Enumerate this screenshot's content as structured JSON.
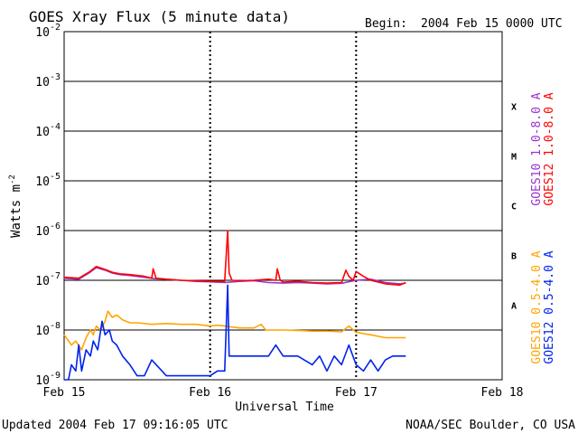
{
  "chart_data": {
    "type": "line",
    "title": "GOES Xray Flux (5 minute data)",
    "begin_label": "Begin:",
    "begin_value": "2004 Feb 15 0000 UTC",
    "xlabel": "Universal Time",
    "ylabel_base": "Watts m",
    "ylabel_exp": "-2",
    "x_domain_days": [
      0,
      3
    ],
    "x_ticks": [
      {
        "x": 0,
        "label": "Feb 15"
      },
      {
        "x": 1,
        "label": "Feb 16"
      },
      {
        "x": 2,
        "label": "Feb 17"
      },
      {
        "x": 3,
        "label": "Feb 18"
      }
    ],
    "y_scale": "log",
    "ylim": [
      1e-09,
      0.01
    ],
    "y_ticks": [
      {
        "value": 0.01,
        "base": "10",
        "exp": "-2"
      },
      {
        "value": 0.001,
        "base": "10",
        "exp": "-3"
      },
      {
        "value": 0.0001,
        "base": "10",
        "exp": "-4"
      },
      {
        "value": 1e-05,
        "base": "10",
        "exp": "-5"
      },
      {
        "value": 1e-06,
        "base": "10",
        "exp": "-6"
      },
      {
        "value": 1e-07,
        "base": "10",
        "exp": "-7"
      },
      {
        "value": 1e-08,
        "base": "10",
        "exp": "-8"
      },
      {
        "value": 1e-09,
        "base": "10",
        "exp": "-9"
      }
    ],
    "grid": "horizontal lines at each decade",
    "flare_classes": [
      {
        "label": "X",
        "band": [
          0.0001,
          0.001
        ]
      },
      {
        "label": "M",
        "band": [
          1e-05,
          0.0001
        ]
      },
      {
        "label": "C",
        "band": [
          1e-06,
          1e-05
        ]
      },
      {
        "label": "B",
        "band": [
          1e-07,
          1e-06
        ]
      },
      {
        "label": "A",
        "band": [
          1e-08,
          1e-07
        ]
      }
    ],
    "series": [
      {
        "name": "GOES10 1.0-8.0 A",
        "color": "#9933cc",
        "x": [
          0,
          0.1,
          0.17,
          0.22,
          0.28,
          0.33,
          0.38,
          0.45,
          0.55,
          0.62,
          0.7,
          0.8,
          0.9,
          1.0,
          1.1,
          1.2,
          1.3,
          1.4,
          1.5,
          1.6,
          1.7,
          1.8,
          1.9,
          2.0,
          2.1,
          2.2,
          2.3,
          2.34
        ],
        "y": [
          1.1e-07,
          1.05e-07,
          1.4e-07,
          1.8e-07,
          1.6e-07,
          1.4e-07,
          1.3e-07,
          1.25e-07,
          1.15e-07,
          1.08e-07,
          1.05e-07,
          1e-07,
          9.5e-08,
          9.3e-08,
          9e-08,
          9.5e-08,
          9.8e-08,
          9e-08,
          8.8e-08,
          9e-08,
          8.8e-08,
          8.5e-08,
          8.7e-08,
          1e-07,
          1.05e-07,
          9e-08,
          8.5e-08,
          8.8e-08
        ]
      },
      {
        "name": "GOES12 1.0-8.0 A",
        "color": "#ff0000",
        "x": [
          0,
          0.1,
          0.17,
          0.22,
          0.28,
          0.33,
          0.38,
          0.45,
          0.55,
          0.6,
          0.61,
          0.63,
          0.7,
          0.8,
          0.9,
          1.0,
          1.1,
          1.12,
          1.13,
          1.15,
          1.2,
          1.3,
          1.4,
          1.45,
          1.46,
          1.48,
          1.5,
          1.6,
          1.7,
          1.8,
          1.9,
          1.93,
          1.95,
          1.98,
          2.0,
          2.05,
          2.1,
          2.2,
          2.3,
          2.34
        ],
        "y": [
          1.15e-07,
          1.1e-07,
          1.45e-07,
          1.9e-07,
          1.65e-07,
          1.45e-07,
          1.35e-07,
          1.3e-07,
          1.2e-07,
          1.1e-07,
          1.7e-07,
          1.1e-07,
          1.05e-07,
          1e-07,
          9.8e-08,
          9.5e-08,
          9.5e-08,
          1e-06,
          1.4e-07,
          1e-07,
          9.8e-08,
          1e-07,
          1.05e-07,
          1e-07,
          1.7e-07,
          1e-07,
          9.2e-08,
          9.5e-08,
          9e-08,
          8.8e-08,
          9e-08,
          1.6e-07,
          1.2e-07,
          1e-07,
          1.5e-07,
          1.2e-07,
          1e-07,
          8.5e-08,
          8e-08,
          9e-08
        ]
      },
      {
        "name": "GOES10 0.5-4.0 A",
        "color": "#ffa500",
        "x": [
          0,
          0.05,
          0.08,
          0.12,
          0.15,
          0.18,
          0.2,
          0.22,
          0.25,
          0.28,
          0.3,
          0.33,
          0.36,
          0.4,
          0.45,
          0.5,
          0.6,
          0.7,
          0.8,
          0.9,
          1.0,
          1.05,
          1.1,
          1.2,
          1.3,
          1.35,
          1.38,
          1.4,
          1.5,
          1.6,
          1.7,
          1.8,
          1.9,
          1.95,
          2.0,
          2.05,
          2.1,
          2.2,
          2.3,
          2.34
        ],
        "y": [
          8e-09,
          5e-09,
          6e-09,
          4e-09,
          7e-09,
          1e-08,
          8e-09,
          1.2e-08,
          1e-08,
          1.5e-08,
          2.4e-08,
          1.8e-08,
          2e-08,
          1.6e-08,
          1.4e-08,
          1.4e-08,
          1.3e-08,
          1.35e-08,
          1.3e-08,
          1.3e-08,
          1.2e-08,
          1.25e-08,
          1.2e-08,
          1.1e-08,
          1.1e-08,
          1.3e-08,
          1e-08,
          1e-08,
          1e-08,
          9.8e-09,
          9.5e-09,
          9.5e-09,
          9.2e-09,
          1.2e-08,
          9e-09,
          8.5e-09,
          8e-09,
          7e-09,
          7e-09,
          7e-09
        ]
      },
      {
        "name": "GOES12 0.5-4.0 A",
        "color": "#0022ee",
        "x": [
          0,
          0.03,
          0.05,
          0.08,
          0.1,
          0.12,
          0.15,
          0.18,
          0.2,
          0.23,
          0.26,
          0.28,
          0.31,
          0.33,
          0.36,
          0.4,
          0.45,
          0.5,
          0.55,
          0.6,
          0.7,
          0.8,
          0.9,
          1.0,
          1.05,
          1.1,
          1.12,
          1.13,
          1.15,
          1.2,
          1.3,
          1.4,
          1.45,
          1.5,
          1.6,
          1.7,
          1.75,
          1.8,
          1.85,
          1.9,
          1.95,
          2.0,
          2.05,
          2.1,
          2.15,
          2.2,
          2.25,
          2.3,
          2.34
        ],
        "y": [
          1e-09,
          1e-09,
          2e-09,
          1.5e-09,
          5e-09,
          1.5e-09,
          4e-09,
          3e-09,
          6e-09,
          4e-09,
          1.5e-08,
          8e-09,
          1e-08,
          6e-09,
          5e-09,
          3e-09,
          2e-09,
          1.2e-09,
          1.2e-09,
          2.5e-09,
          1.2e-09,
          1.2e-09,
          1.2e-09,
          1.2e-09,
          1.5e-09,
          1.5e-09,
          8e-08,
          3e-09,
          3e-09,
          3e-09,
          3e-09,
          3e-09,
          5e-09,
          3e-09,
          3e-09,
          2e-09,
          3e-09,
          1.5e-09,
          3e-09,
          2e-09,
          5e-09,
          2e-09,
          1.5e-09,
          2.5e-09,
          1.5e-09,
          2.5e-09,
          3e-09,
          3e-09,
          3e-09
        ]
      }
    ]
  },
  "footer": {
    "updated": "Updated 2004 Feb 17 09:16:05 UTC",
    "source": "NOAA/SEC Boulder, CO USA"
  }
}
